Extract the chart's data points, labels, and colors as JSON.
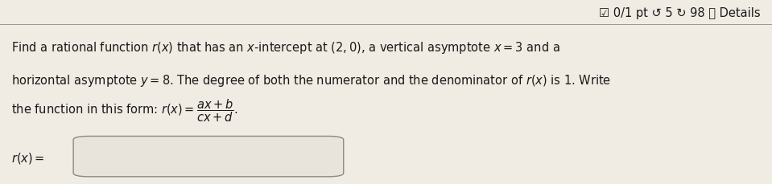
{
  "bg_color": "#f0ece4",
  "text_color": "#1a1a1a",
  "header_text": "☑ 0/1 pt ↺ 5 ↻ 98 ⓘ Details",
  "divider_color": "#999999",
  "input_box_edge_color": "#888888",
  "input_box_face_color": "#e8e4dc",
  "font_size_main": 10.5,
  "font_size_header": 10.5,
  "line1": "Find a rational function $r(x)$ that has an $x$-intercept at $(2, 0)$, a vertical asymptote $x = 3$ and a",
  "line2": "horizontal asymptote $y = 8$. The degree of both the numerator and the denominator of $r(x)$ is 1. Write",
  "line3_pre": "the function in this form: $r(x) = $",
  "label_rx": "$r(x) = $"
}
